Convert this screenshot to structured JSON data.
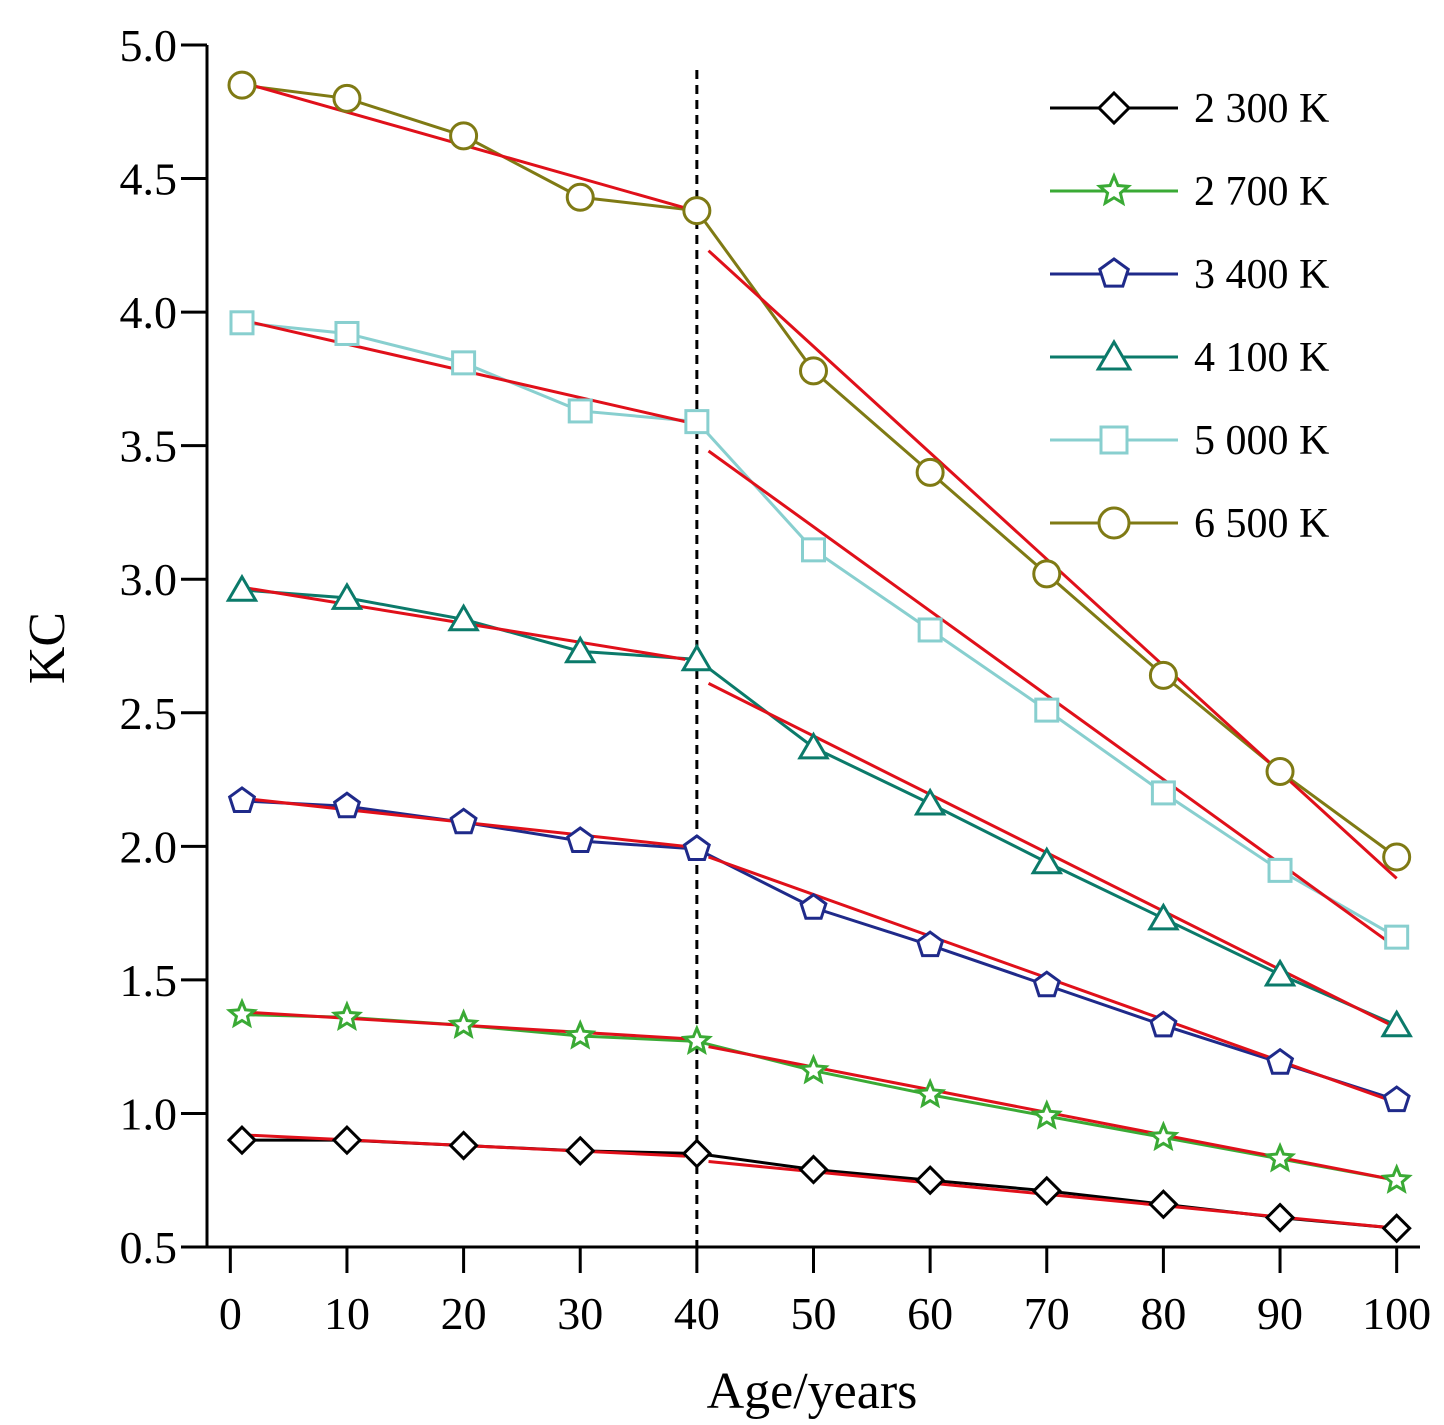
{
  "chart_data": {
    "type": "line",
    "title": "",
    "xlabel": "Age/years",
    "ylabel": "KC",
    "xlim": [
      -2,
      102
    ],
    "ylim": [
      0.5,
      5.0
    ],
    "x_ticks": [
      "0",
      "10",
      "20",
      "30",
      "40",
      "50",
      "60",
      "70",
      "80",
      "90",
      "100"
    ],
    "y_ticks": [
      "0.5",
      "1.0",
      "1.5",
      "2.0",
      "2.5",
      "3.0",
      "3.5",
      "4.0",
      "4.5",
      "5.0"
    ],
    "x_tick_values": [
      0,
      10,
      20,
      30,
      40,
      50,
      60,
      70,
      80,
      90,
      100
    ],
    "y_tick_values": [
      0.5,
      1.0,
      1.5,
      2.0,
      2.5,
      3.0,
      3.5,
      4.0,
      4.5,
      5.0
    ],
    "grid": false,
    "legend_position": "top-right",
    "x": [
      1,
      10,
      20,
      30,
      40,
      50,
      60,
      70,
      80,
      90,
      100
    ],
    "series": [
      {
        "name": "2 300 K",
        "marker": "diamond",
        "color": "#000000",
        "values": [
          0.9,
          0.9,
          0.88,
          0.86,
          0.85,
          0.79,
          0.75,
          0.71,
          0.66,
          0.61,
          0.57
        ]
      },
      {
        "name": "2 700 K",
        "marker": "star",
        "color": "#3aaa35",
        "values": [
          1.37,
          1.36,
          1.33,
          1.29,
          1.27,
          1.16,
          1.07,
          0.99,
          0.91,
          0.83,
          0.75
        ]
      },
      {
        "name": "3 400 K",
        "marker": "pentagon",
        "color": "#1f2a8a",
        "values": [
          2.17,
          2.15,
          2.09,
          2.02,
          1.99,
          1.77,
          1.63,
          1.48,
          1.33,
          1.19,
          1.05
        ]
      },
      {
        "name": "4 100 K",
        "marker": "triangle",
        "color": "#0b7a6a",
        "values": [
          2.96,
          2.93,
          2.85,
          2.73,
          2.7,
          2.37,
          2.16,
          1.94,
          1.73,
          1.52,
          1.33
        ]
      },
      {
        "name": "5 000 K",
        "marker": "square",
        "color": "#88cfcf",
        "values": [
          3.96,
          3.92,
          3.81,
          3.63,
          3.59,
          3.11,
          2.81,
          2.51,
          2.2,
          1.91,
          1.66
        ]
      },
      {
        "name": "6 500 K",
        "marker": "circle",
        "color": "#7f7a14",
        "values": [
          4.85,
          4.8,
          4.66,
          4.43,
          4.38,
          3.78,
          3.4,
          3.02,
          2.64,
          2.28,
          1.96
        ]
      }
    ],
    "fit_lines": {
      "color": "#e0101a",
      "segments": [
        {
          "x": [
            1,
            39
          ],
          "y": [
            0.92,
            0.84
          ]
        },
        {
          "x": [
            41,
            100
          ],
          "y": [
            0.82,
            0.57
          ]
        },
        {
          "x": [
            1,
            39
          ],
          "y": [
            1.38,
            1.28
          ]
        },
        {
          "x": [
            41,
            100
          ],
          "y": [
            1.25,
            0.75
          ]
        },
        {
          "x": [
            1,
            39
          ],
          "y": [
            2.18,
            2.0
          ]
        },
        {
          "x": [
            41,
            100
          ],
          "y": [
            1.96,
            1.04
          ]
        },
        {
          "x": [
            1,
            39
          ],
          "y": [
            2.97,
            2.7
          ]
        },
        {
          "x": [
            41,
            100
          ],
          "y": [
            2.61,
            1.32
          ]
        },
        {
          "x": [
            1,
            39
          ],
          "y": [
            3.97,
            3.59
          ]
        },
        {
          "x": [
            41,
            100
          ],
          "y": [
            3.48,
            1.62
          ]
        },
        {
          "x": [
            1,
            39
          ],
          "y": [
            4.86,
            4.39
          ]
        },
        {
          "x": [
            41,
            100
          ],
          "y": [
            4.23,
            1.88
          ]
        }
      ]
    },
    "reference_line": {
      "x": 40,
      "style": "dashed",
      "color": "#000000"
    }
  }
}
